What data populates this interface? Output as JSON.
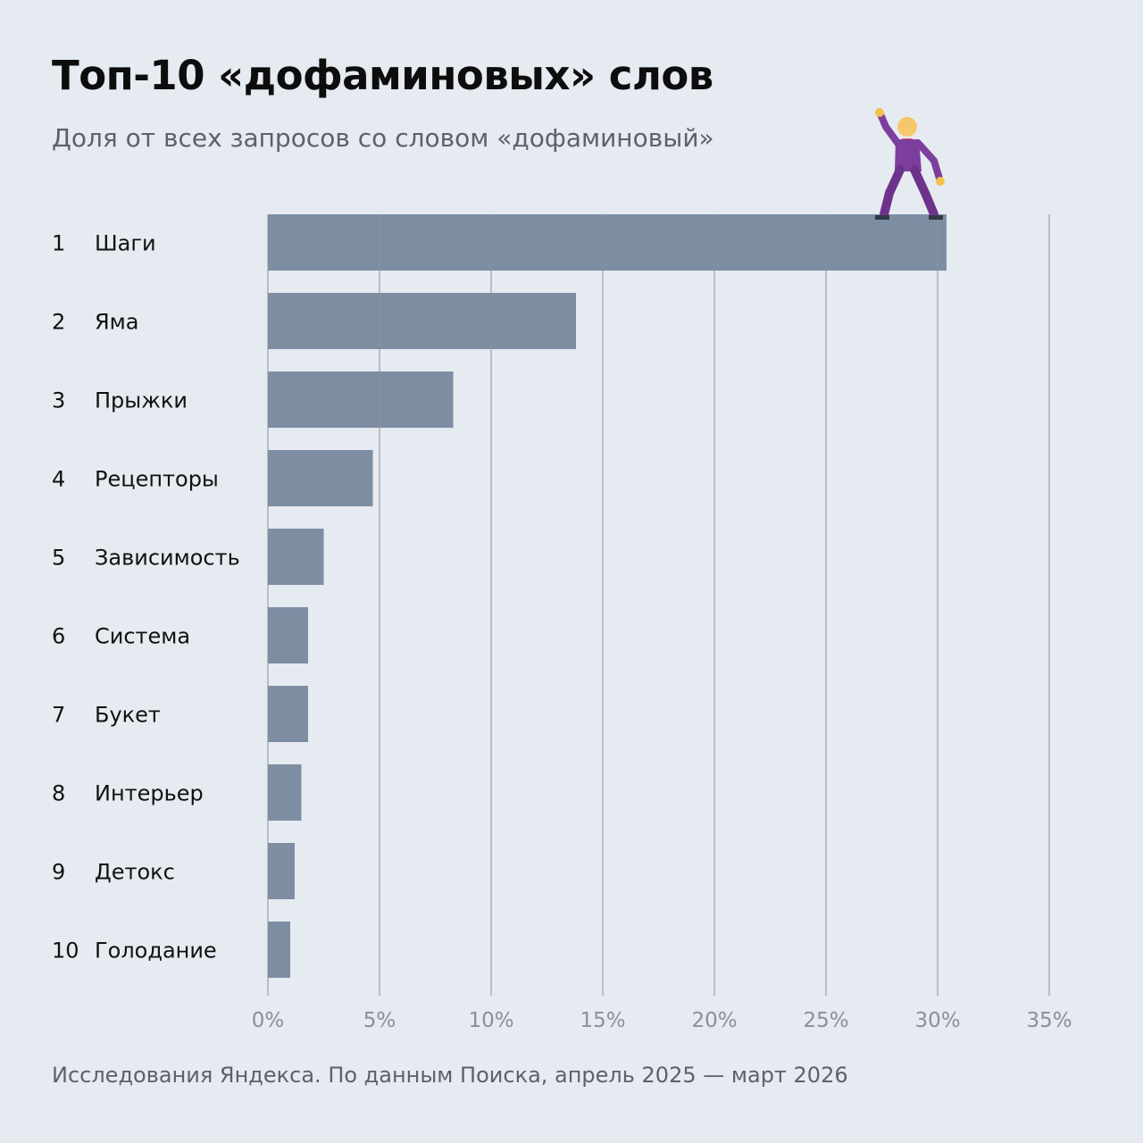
{
  "header": {
    "title": "Топ-10 «дофаминовых» слов",
    "subtitle": "Доля от всех запросов со словом «дофаминовый»"
  },
  "footer": {
    "source": "Исследования Яндекса. По данным Поиска, апрель 2025 — март 2026"
  },
  "decoration": {
    "icon": "dancing-man-icon"
  },
  "colors": {
    "background": "#e6eaf1",
    "bar": "#7d8ea3",
    "gridline": "#8d9097"
  },
  "chart_data": {
    "type": "bar",
    "orientation": "horizontal",
    "title": "Топ-10 «дофаминовых» слов",
    "subtitle": "Доля от всех запросов со словом «дофаминовый»",
    "ranks": [
      "1",
      "2",
      "3",
      "4",
      "5",
      "6",
      "7",
      "8",
      "9",
      "10"
    ],
    "categories": [
      "Шаги",
      "Яма",
      "Прыжки",
      "Рецепторы",
      "Зависимость",
      "Система",
      "Букет",
      "Интерьер",
      "Детокс",
      "Голодание"
    ],
    "values": [
      30.4,
      13.8,
      8.3,
      4.7,
      2.5,
      1.8,
      1.8,
      1.5,
      1.2,
      1.0
    ],
    "unit": "%",
    "xlim": [
      0,
      35
    ],
    "xticks": [
      0,
      5,
      10,
      15,
      20,
      25,
      30,
      35
    ],
    "xtick_labels": [
      "0%",
      "5%",
      "10%",
      "15%",
      "20%",
      "25%",
      "30%",
      "35%"
    ],
    "grid": true,
    "legend": "none"
  }
}
